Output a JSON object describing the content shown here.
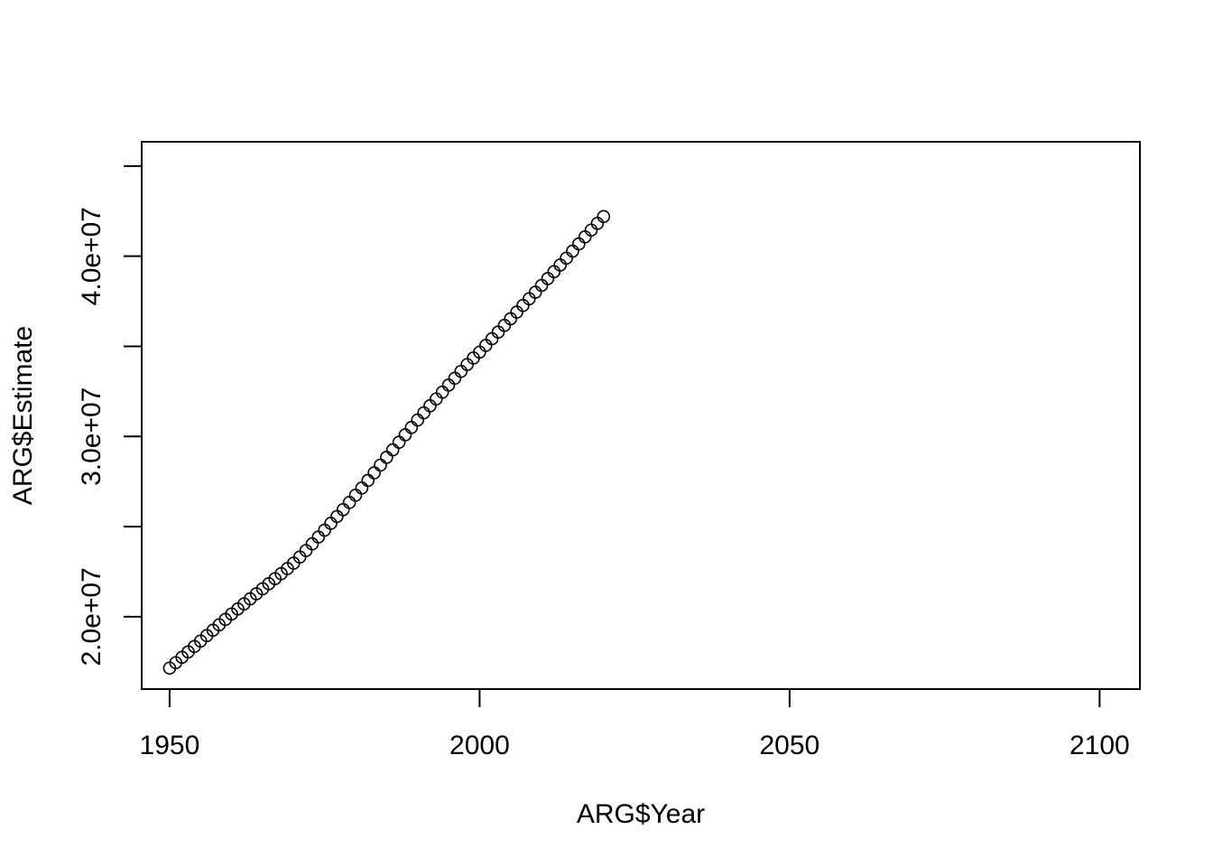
{
  "chart_data": {
    "type": "scatter",
    "title": "",
    "xlabel": "ARG$Year",
    "ylabel": "ARG$Estimate",
    "xlim": [
      1945.5,
      2106.5
    ],
    "ylim": [
      15985000,
      46347000
    ],
    "x_ticks": [
      1950,
      2000,
      2050,
      2100
    ],
    "x_tick_labels": [
      "1950",
      "2000",
      "2050",
      "2100"
    ],
    "y_ticks": [
      20000000,
      25000000,
      30000000,
      35000000,
      40000000,
      45000000
    ],
    "y_tick_labels": [
      "2.0e+07",
      "",
      "3.0e+07",
      "",
      "4.0e+07",
      ""
    ],
    "grid": false,
    "legend": "none",
    "marker": "open-circle",
    "color": "#000000",
    "x": [
      1950,
      1951,
      1952,
      1953,
      1954,
      1955,
      1956,
      1957,
      1958,
      1959,
      1960,
      1961,
      1962,
      1963,
      1964,
      1965,
      1966,
      1967,
      1968,
      1969,
      1970,
      1971,
      1972,
      1973,
      1974,
      1975,
      1976,
      1977,
      1978,
      1979,
      1980,
      1981,
      1982,
      1983,
      1984,
      1985,
      1986,
      1987,
      1988,
      1989,
      1990,
      1991,
      1992,
      1993,
      1994,
      1995,
      1996,
      1997,
      1998,
      1999,
      2000,
      2001,
      2002,
      2003,
      2004,
      2005,
      2006,
      2007,
      2008,
      2009,
      2010,
      2011,
      2012,
      2013,
      2014,
      2015,
      2016,
      2017,
      2018,
      2019,
      2020
    ],
    "y": [
      17150000,
      17450000,
      17750000,
      18050000,
      18350000,
      18650000,
      18950000,
      19250000,
      19550000,
      19850000,
      20150000,
      20430000,
      20710000,
      20990000,
      21270000,
      21550000,
      21830000,
      22110000,
      22390000,
      22670000,
      22970000,
      23310000,
      23670000,
      24040000,
      24420000,
      24800000,
      25180000,
      25560000,
      25940000,
      26340000,
      26740000,
      27140000,
      27560000,
      27980000,
      28410000,
      28840000,
      29260000,
      29680000,
      30090000,
      30500000,
      30910000,
      31310000,
      31700000,
      32080000,
      32460000,
      32850000,
      33230000,
      33610000,
      33990000,
      34350000,
      34680000,
      35050000,
      35420000,
      35790000,
      36160000,
      36530000,
      36900000,
      37270000,
      37640000,
      38000000,
      38380000,
      38760000,
      39140000,
      39510000,
      39890000,
      40280000,
      40680000,
      41070000,
      41450000,
      41820000,
      42200000
    ]
  }
}
